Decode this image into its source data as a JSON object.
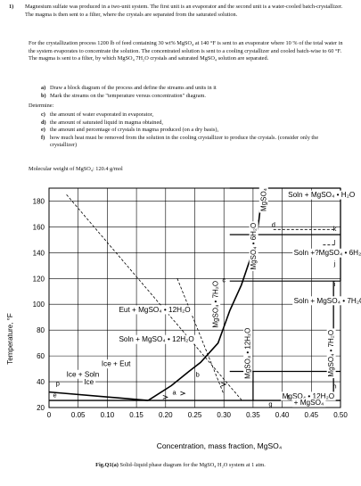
{
  "problem": {
    "number": "1)",
    "intro": "Magnesium sulfate was produced in a two-unit system. The first unit is an evaporator and the second unit is a water-cooled batch-crystallizer. The magma is then sent to a filter, where the crystals are separated from the saturated solution.",
    "paragraph": "For the crystallization process 1200 lb of feed containing 30 wt% MgSO₄ at 140 °F is sent to an evaporator where 10 % of the total water in the system evaporates to concentrate the solution. The concentrated solution is sent to a cooling crystallizer and cooled batch-wise to 60 °F. The magma is sent to a filter, by which MgSO₄ 7H₂O crystals and saturated MgSO₄ solution are separated.",
    "parts_ab": [
      {
        "label": "a)",
        "text": "Draw a block diagram of the process and define the streams and units in it"
      },
      {
        "label": "b)",
        "text": "Mark the streams on the \"temperature versus concentration\" diagram."
      }
    ],
    "determine": "Determine:",
    "parts_cf": [
      {
        "label": "c)",
        "text": "the amount of water evaporated in evaporator,"
      },
      {
        "label": "d)",
        "text": "the amount of saturated liquid in magma obtained,"
      },
      {
        "label": "e)",
        "text": "the amount and percentage of crystals in magma produced (on a dry basis),"
      },
      {
        "label": "f)",
        "text": "how much heat must be removed from the solution in the cooling crystallizer to produce the crystals. (consider only the crystallizer)"
      }
    ],
    "molecular_weight": "Molecular weight of MgSO₄: 120.4 g/mol"
  },
  "chart_data": {
    "type": "phase-diagram",
    "xlabel": "Concentration, mass fraction, MgSO₄",
    "ylabel": "Temperature, °F",
    "x_ticks": [
      "0",
      "0.05",
      "0.10",
      "0.15",
      "0.20",
      "0.25",
      "0.30",
      "0.35",
      "0.40",
      "0.45",
      "0.50"
    ],
    "y_ticks": [
      "20",
      "40",
      "60",
      "80",
      "100",
      "120",
      "140",
      "160",
      "180"
    ],
    "xlim": [
      0,
      0.5
    ],
    "ylim": [
      20,
      190
    ],
    "grid": true,
    "liquidus": {
      "ice_line": [
        [
          0.0,
          32
        ],
        [
          0.17,
          25.5
        ]
      ],
      "solubility_curve": [
        [
          0.17,
          25.5
        ],
        [
          0.21,
          37
        ],
        [
          0.24,
          48
        ],
        [
          0.26,
          55
        ],
        [
          0.29,
          70
        ],
        [
          0.31,
          95
        ],
        [
          0.33,
          115
        ],
        [
          0.345,
          135
        ],
        [
          0.355,
          150
        ],
        [
          0.36,
          165
        ],
        [
          0.365,
          185
        ]
      ]
    },
    "hydrate_lines": [
      {
        "name": "MgSO₄ • 12H₂O",
        "x": 0.35,
        "y_range": [
          25.5,
          48
        ]
      },
      {
        "name": "MgSO₄ • 7H₂O",
        "x": 0.488,
        "y_range": [
          25.5,
          118
        ]
      },
      {
        "name": "MgSO₄ • 6H₂O",
        "x": 0.53,
        "y_range": [
          118,
          154
        ]
      },
      {
        "name": "MgSO₄",
        "x": 0.6,
        "y_range": [
          154,
          190
        ]
      }
    ],
    "region_labels": [
      {
        "text": "Soln + MgSO₄ • H₂O",
        "x": 0.41,
        "y": 183
      },
      {
        "text": "Soln +?MgSO₄ • 6H₂O",
        "x": 0.42,
        "y": 138
      },
      {
        "text": "Soln + MgSO₄ • 7H₂O",
        "x": 0.42,
        "y": 101
      },
      {
        "text": "Eut + MgSO₄ • 12H₂O",
        "x": 0.12,
        "y": 94
      },
      {
        "text": "Soln + MgSO₄ • 12H₂O",
        "x": 0.12,
        "y": 71
      },
      {
        "text": "Ice + Eut",
        "x": 0.09,
        "y": 52
      },
      {
        "text": "Ice + Soln",
        "x": 0.03,
        "y": 44
      },
      {
        "text": "Ice",
        "x": 0.06,
        "y": 38
      },
      {
        "text": "MgSO₄ • 12H₂O",
        "x": 0.4,
        "y": 27
      },
      {
        "text": "+ MgSO₄",
        "x": 0.42,
        "y": 22
      }
    ],
    "rotated_labels": [
      {
        "text": "MgSO₄",
        "x": 0.372,
        "y": 181
      },
      {
        "text": "MgSO₄ • 6H₂O",
        "x": 0.355,
        "y": 145
      },
      {
        "text": "MgSO₄ • 7H₂O",
        "x": 0.29,
        "y": 100
      },
      {
        "text": "MgSO₄ • 12H₂O",
        "x": 0.345,
        "y": 62
      },
      {
        "text": "MgSO₄ • 7H₂O",
        "x": 0.488,
        "y": 62
      }
    ],
    "point_labels": [
      {
        "text": "a",
        "x": 0.215,
        "y": 30
      },
      {
        "text": "b",
        "x": 0.255,
        "y": 44
      },
      {
        "text": "c",
        "x": 0.3,
        "y": 117
      },
      {
        "text": "d",
        "x": 0.385,
        "y": 160
      },
      {
        "text": "e",
        "x": 0.01,
        "y": 28
      },
      {
        "text": "f",
        "x": 0.41,
        "y": 26
      },
      {
        "text": "g",
        "x": 0.38,
        "y": 21
      },
      {
        "text": "h",
        "x": 0.49,
        "y": 35
      },
      {
        "text": "i",
        "x": 0.49,
        "y": 114
      },
      {
        "text": "j",
        "x": 0.49,
        "y": 130
      },
      {
        "text": "k",
        "x": 0.49,
        "y": 157
      },
      {
        "text": "l",
        "x": 0.49,
        "y": 146
      },
      {
        "text": "p",
        "x": 0.015,
        "y": 37
      }
    ]
  },
  "caption": {
    "label": "Fig.Q1(a)",
    "text": "Solid–liquid phase diagram for the MgSO₄ H₂O system at 1 atm."
  }
}
